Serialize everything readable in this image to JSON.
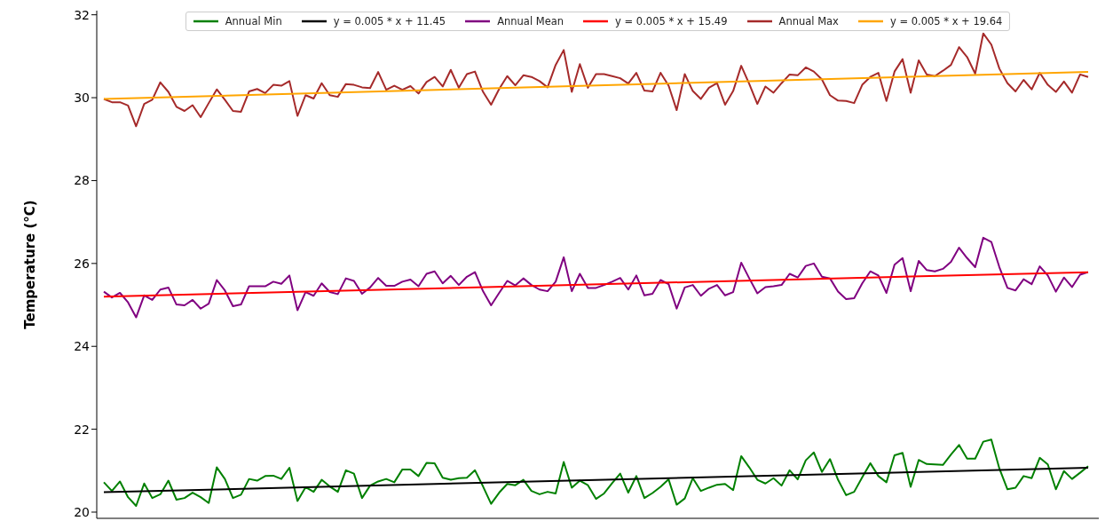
{
  "chart_data": {
    "type": "line",
    "ylabel": "Temperature (°C)",
    "tick_labels": "y",
    "legend": "top",
    "grid": false,
    "line_style": "solid",
    "categories": [
      null,
      null,
      null,
      null,
      null,
      null,
      null,
      null,
      null,
      null,
      null,
      null,
      null,
      null,
      null,
      null,
      null,
      null,
      null,
      null,
      null,
      null,
      null,
      null,
      null,
      null,
      null,
      null,
      null,
      null,
      null,
      null,
      null,
      null,
      null,
      null,
      null,
      null,
      null,
      null,
      null,
      null,
      null,
      null,
      null,
      null,
      null,
      null,
      null,
      null,
      null,
      null,
      null,
      null,
      null,
      null,
      null,
      null,
      null,
      null,
      null,
      null,
      null,
      null,
      null,
      null,
      null,
      null,
      null,
      null,
      null,
      null,
      null,
      null,
      null,
      null,
      null,
      null,
      null,
      null,
      null,
      null,
      null,
      null,
      null,
      null,
      null,
      null,
      null,
      null,
      null,
      null,
      null,
      null,
      null,
      null,
      null,
      null,
      null,
      null,
      null,
      null,
      null,
      null,
      null,
      null,
      null,
      null,
      null,
      null,
      null,
      null,
      null,
      null,
      null,
      null,
      null,
      null,
      null,
      null,
      null,
      null,
      null
    ],
    "ylim": [
      19.85,
      32.1
    ],
    "yticks": [
      20,
      22,
      24,
      26,
      28,
      30,
      32
    ],
    "series": [
      {
        "name": "Annual Min",
        "color": "#008000",
        "values": [
          20.72,
          20.51,
          20.74,
          20.36,
          20.15,
          20.69,
          20.34,
          20.43,
          20.76,
          20.3,
          20.34,
          20.47,
          20.36,
          20.22,
          21.08,
          20.8,
          20.34,
          20.42,
          20.8,
          20.76,
          20.87,
          20.88,
          20.8,
          21.07,
          20.27,
          20.6,
          20.49,
          20.78,
          20.62,
          20.49,
          21.01,
          20.93,
          20.34,
          20.64,
          20.74,
          20.8,
          20.72,
          21.03,
          21.03,
          20.87,
          21.19,
          21.18,
          20.83,
          20.78,
          20.82,
          20.83,
          21.01,
          20.62,
          20.2,
          20.47,
          20.68,
          20.65,
          20.78,
          20.51,
          20.43,
          20.49,
          20.45,
          21.21,
          20.59,
          20.76,
          20.65,
          20.32,
          20.45,
          20.7,
          20.93,
          20.47,
          20.87,
          20.34,
          20.46,
          20.61,
          20.79,
          20.18,
          20.33,
          20.82,
          20.51,
          20.59,
          20.66,
          20.68,
          20.53,
          21.35,
          21.08,
          20.78,
          20.69,
          20.82,
          20.64,
          21.01,
          20.79,
          21.25,
          21.44,
          20.97,
          21.28,
          20.78,
          20.41,
          20.49,
          20.84,
          21.18,
          20.87,
          20.72,
          21.37,
          21.43,
          20.61,
          21.26,
          21.16,
          21.15,
          21.14,
          21.39,
          21.62,
          21.29,
          21.29,
          21.7,
          21.75,
          21.05,
          20.55,
          20.59,
          20.87,
          20.82,
          21.31,
          21.15,
          20.55,
          20.99,
          20.8,
          20.95,
          21.11
        ]
      },
      {
        "name": "y = 0.005 * x + 11.45",
        "color": "#000000",
        "values": [
          20.48,
          null,
          null,
          null,
          null,
          null,
          null,
          null,
          null,
          null,
          null,
          null,
          null,
          null,
          null,
          null,
          null,
          null,
          null,
          null,
          null,
          null,
          null,
          null,
          null,
          null,
          null,
          null,
          null,
          null,
          null,
          null,
          null,
          null,
          null,
          null,
          null,
          null,
          null,
          null,
          null,
          null,
          null,
          null,
          null,
          null,
          null,
          null,
          null,
          null,
          null,
          null,
          null,
          null,
          null,
          null,
          null,
          null,
          null,
          null,
          null,
          null,
          null,
          null,
          null,
          null,
          null,
          null,
          null,
          null,
          null,
          null,
          null,
          null,
          null,
          null,
          null,
          null,
          null,
          null,
          null,
          null,
          null,
          null,
          null,
          null,
          null,
          null,
          null,
          null,
          null,
          null,
          null,
          null,
          null,
          null,
          null,
          null,
          null,
          null,
          null,
          null,
          null,
          null,
          null,
          null,
          null,
          null,
          null,
          null,
          null,
          null,
          null,
          null,
          null,
          null,
          null,
          null,
          null,
          null,
          null,
          null,
          21.07
        ]
      },
      {
        "name": "Annual Mean",
        "color": "#800080",
        "values": [
          25.32,
          25.18,
          25.29,
          25.06,
          24.7,
          25.23,
          25.12,
          25.37,
          25.42,
          25.01,
          24.99,
          25.12,
          24.91,
          25.03,
          25.6,
          25.35,
          24.97,
          25.01,
          25.45,
          25.45,
          25.45,
          25.56,
          25.51,
          25.71,
          24.87,
          25.31,
          25.22,
          25.52,
          25.31,
          25.26,
          25.64,
          25.58,
          25.27,
          25.42,
          25.65,
          25.46,
          25.46,
          25.56,
          25.61,
          25.45,
          25.75,
          25.81,
          25.52,
          25.7,
          25.48,
          25.68,
          25.79,
          25.33,
          24.99,
          25.29,
          25.58,
          25.47,
          25.64,
          25.48,
          25.37,
          25.33,
          25.56,
          26.15,
          25.33,
          25.75,
          25.41,
          25.41,
          25.48,
          25.56,
          25.65,
          25.37,
          25.71,
          25.23,
          25.27,
          25.6,
          25.5,
          24.91,
          25.42,
          25.48,
          25.22,
          25.39,
          25.48,
          25.23,
          25.31,
          26.02,
          25.64,
          25.28,
          25.43,
          25.45,
          25.48,
          25.75,
          25.66,
          25.94,
          26.0,
          25.68,
          25.64,
          25.32,
          25.14,
          25.16,
          25.52,
          25.81,
          25.71,
          25.29,
          25.97,
          26.13,
          25.33,
          26.06,
          25.84,
          25.81,
          25.87,
          26.04,
          26.38,
          26.13,
          25.91,
          26.62,
          26.52,
          25.91,
          25.41,
          25.35,
          25.62,
          25.5,
          25.93,
          25.71,
          25.32,
          25.66,
          25.43,
          25.73,
          25.79
        ]
      },
      {
        "name": "y = 0.005 * x + 15.49",
        "color": "#ff0000",
        "values": [
          25.2,
          null,
          null,
          null,
          null,
          null,
          null,
          null,
          null,
          null,
          null,
          null,
          null,
          null,
          null,
          null,
          null,
          null,
          null,
          null,
          null,
          null,
          null,
          null,
          null,
          null,
          null,
          null,
          null,
          null,
          null,
          null,
          null,
          null,
          null,
          null,
          null,
          null,
          null,
          null,
          null,
          null,
          null,
          null,
          null,
          null,
          null,
          null,
          null,
          null,
          null,
          null,
          null,
          null,
          null,
          null,
          null,
          null,
          null,
          null,
          null,
          null,
          null,
          null,
          null,
          null,
          null,
          null,
          null,
          null,
          null,
          null,
          null,
          null,
          null,
          null,
          null,
          null,
          null,
          null,
          null,
          null,
          null,
          null,
          null,
          null,
          null,
          null,
          null,
          null,
          null,
          null,
          null,
          null,
          null,
          null,
          null,
          null,
          null,
          null,
          null,
          null,
          null,
          null,
          null,
          null,
          null,
          null,
          null,
          null,
          null,
          null,
          null,
          null,
          null,
          null,
          null,
          null,
          null,
          null,
          null,
          null,
          25.79
        ]
      },
      {
        "name": "Annual Max",
        "color": "#a52a2a",
        "values": [
          29.97,
          29.89,
          29.89,
          29.81,
          29.31,
          29.85,
          29.95,
          30.37,
          30.14,
          29.78,
          29.68,
          29.82,
          29.53,
          29.87,
          30.2,
          29.95,
          29.68,
          29.66,
          30.15,
          30.21,
          30.11,
          30.31,
          30.29,
          30.4,
          29.56,
          30.06,
          29.98,
          30.35,
          30.06,
          30.02,
          30.33,
          30.31,
          30.25,
          30.23,
          30.62,
          30.19,
          30.29,
          30.19,
          30.28,
          30.1,
          30.38,
          30.5,
          30.27,
          30.67,
          30.24,
          30.57,
          30.63,
          30.14,
          29.83,
          30.21,
          30.52,
          30.3,
          30.54,
          30.5,
          30.4,
          30.25,
          30.79,
          31.15,
          30.14,
          30.81,
          30.24,
          30.57,
          30.57,
          30.52,
          30.47,
          30.34,
          30.6,
          30.17,
          30.15,
          30.6,
          30.29,
          29.7,
          30.57,
          30.16,
          29.97,
          30.24,
          30.35,
          29.83,
          30.16,
          30.77,
          30.33,
          29.85,
          30.27,
          30.12,
          30.35,
          30.56,
          30.54,
          30.73,
          30.63,
          30.44,
          30.06,
          29.93,
          29.92,
          29.87,
          30.31,
          30.5,
          30.6,
          29.92,
          30.63,
          30.93,
          30.12,
          30.9,
          30.56,
          30.52,
          30.65,
          30.79,
          31.22,
          30.98,
          30.58,
          31.55,
          31.28,
          30.7,
          30.35,
          30.15,
          30.43,
          30.2,
          30.6,
          30.31,
          30.14,
          30.39,
          30.12,
          30.56,
          30.5
        ]
      },
      {
        "name": "y = 0.005 * x + 19.64",
        "color": "#ffa500",
        "values": [
          29.97,
          null,
          null,
          null,
          null,
          null,
          null,
          null,
          null,
          null,
          null,
          null,
          null,
          null,
          null,
          null,
          null,
          null,
          null,
          null,
          null,
          null,
          null,
          null,
          null,
          null,
          null,
          null,
          null,
          null,
          null,
          null,
          null,
          null,
          null,
          null,
          null,
          null,
          null,
          null,
          null,
          null,
          null,
          null,
          null,
          null,
          null,
          null,
          null,
          null,
          null,
          null,
          null,
          null,
          null,
          null,
          null,
          null,
          null,
          null,
          null,
          null,
          null,
          null,
          null,
          null,
          null,
          null,
          null,
          null,
          null,
          null,
          null,
          null,
          null,
          null,
          null,
          null,
          null,
          null,
          null,
          null,
          null,
          null,
          null,
          null,
          null,
          null,
          null,
          null,
          null,
          null,
          null,
          null,
          null,
          null,
          null,
          null,
          null,
          null,
          null,
          null,
          null,
          null,
          null,
          null,
          null,
          null,
          null,
          null,
          null,
          null,
          null,
          null,
          null,
          null,
          null,
          null,
          null,
          null,
          null,
          null,
          30.62
        ]
      }
    ]
  }
}
